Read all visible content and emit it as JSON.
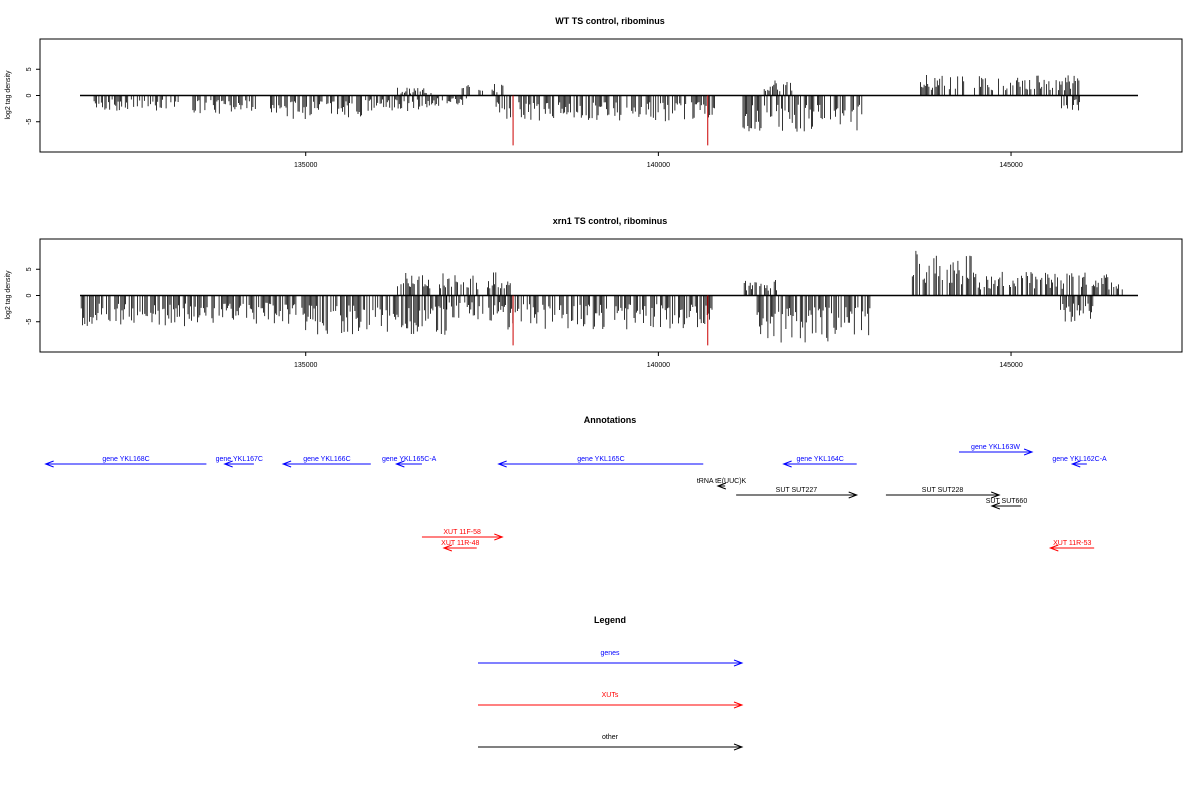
{
  "colors": {
    "genes": "#0000ff",
    "xuts": "#ff0000",
    "other": "#000000",
    "peak": "#cc0000",
    "bars": "#000000"
  },
  "chart_data": [
    {
      "type": "bar",
      "title": "WT TS control, ribominus",
      "ylabel": "log2 tag density",
      "xlim": [
        131800,
        146800
      ],
      "ylim": [
        -10,
        10
      ],
      "yticks": [
        -5,
        0,
        5
      ],
      "xticks": [
        135000,
        140000,
        145000
      ],
      "features": {
        "negative_regions": [
          {
            "from": 132000,
            "to": 133200,
            "min": -3.0
          },
          {
            "from": 133400,
            "to": 134300,
            "min": -3.5
          },
          {
            "from": 134500,
            "to": 135800,
            "min": -4.5
          },
          {
            "from": 135800,
            "to": 136800,
            "min": -3.0
          },
          {
            "from": 136800,
            "to": 137300,
            "min": -2.0
          },
          {
            "from": 137700,
            "to": 140800,
            "min": -5.0
          },
          {
            "from": 141200,
            "to": 142900,
            "min": -7.0
          },
          {
            "from": 145700,
            "to": 146000,
            "min": -3.0
          }
        ],
        "positive_regions": [
          {
            "from": 136300,
            "to": 136800,
            "max": 1.5
          },
          {
            "from": 137200,
            "to": 137800,
            "max": 2.5
          },
          {
            "from": 141500,
            "to": 141900,
            "max": 3.0
          },
          {
            "from": 143700,
            "to": 146000,
            "max": 4.0
          }
        ],
        "peaks": [
          {
            "x": 137940,
            "y": -9.5
          },
          {
            "x": 140700,
            "y": -9.5
          }
        ]
      }
    },
    {
      "type": "bar",
      "title": "xrn1 TS control, ribominus",
      "ylabel": "log2 tag density",
      "xlim": [
        131800,
        146800
      ],
      "ylim": [
        -10,
        10
      ],
      "yticks": [
        -5,
        0,
        5
      ],
      "xticks": [
        135000,
        140000,
        145000
      ],
      "features": {
        "negative_regions": [
          {
            "from": 131800,
            "to": 133500,
            "min": -6.0
          },
          {
            "from": 133500,
            "to": 135000,
            "min": -5.5
          },
          {
            "from": 135000,
            "to": 137000,
            "min": -7.5
          },
          {
            "from": 137000,
            "to": 137800,
            "min": -5.0
          },
          {
            "from": 137800,
            "to": 140800,
            "min": -6.5
          },
          {
            "from": 141400,
            "to": 143000,
            "min": -9.0
          },
          {
            "from": 145700,
            "to": 146200,
            "min": -6.0
          }
        ],
        "positive_regions": [
          {
            "from": 136300,
            "to": 137900,
            "max": 4.5
          },
          {
            "from": 141200,
            "to": 141700,
            "max": 3.0
          },
          {
            "from": 143600,
            "to": 144500,
            "max": 8.5
          },
          {
            "from": 144500,
            "to": 146600,
            "max": 4.5
          }
        ],
        "peaks": [
          {
            "x": 137940,
            "y": -9.5
          },
          {
            "x": 140700,
            "y": -9.5
          }
        ]
      }
    }
  ],
  "annotations": {
    "title": "Annotations",
    "items": [
      {
        "label": "gene YKL168C",
        "type": "gene",
        "from": 131850,
        "to": 134050,
        "dir": "left",
        "row": 0
      },
      {
        "label": "gene YKL167C",
        "type": "gene",
        "from": 134300,
        "to": 134700,
        "dir": "left",
        "row": 0
      },
      {
        "label": "gene YKL166C",
        "type": "gene",
        "from": 135100,
        "to": 136300,
        "dir": "left",
        "row": 0
      },
      {
        "label": "gene YKL165C-A",
        "type": "gene",
        "from": 136650,
        "to": 137000,
        "dir": "left",
        "row": 0
      },
      {
        "label": "gene YKL165C",
        "type": "gene",
        "from": 138050,
        "to": 140850,
        "dir": "left",
        "row": 0
      },
      {
        "label": "gene YKL164C",
        "type": "gene",
        "from": 141950,
        "to": 142950,
        "dir": "left",
        "row": 0
      },
      {
        "label": "gene YKL163W",
        "type": "gene",
        "from": 144350,
        "to": 145350,
        "dir": "right",
        "row": -1
      },
      {
        "label": "gene YKL162C-A",
        "type": "gene",
        "from": 145900,
        "to": 146100,
        "dir": "left",
        "row": 0
      },
      {
        "label": "tRNA tE(UUC)K",
        "type": "other",
        "from": 141050,
        "to": 141150,
        "dir": "left",
        "row": 1
      },
      {
        "label": "SUT SUT227",
        "type": "other",
        "from": 141300,
        "to": 142950,
        "dir": "right",
        "row": 2
      },
      {
        "label": "SUT SUT228",
        "type": "other",
        "from": 143350,
        "to": 144900,
        "dir": "right",
        "row": 2
      },
      {
        "label": "SUT SUT660",
        "type": "other",
        "from": 144800,
        "to": 145200,
        "dir": "left",
        "row": 3
      },
      {
        "label": "XUT 11F-58",
        "type": "xut",
        "from": 137000,
        "to": 138100,
        "dir": "right",
        "row": 5
      },
      {
        "label": "XUT 11R-48",
        "type": "xut",
        "from": 137300,
        "to": 137750,
        "dir": "left",
        "row": 6
      },
      {
        "label": "XUT 11R-53",
        "type": "xut",
        "from": 145600,
        "to": 146200,
        "dir": "left",
        "row": 6
      }
    ]
  },
  "legend": {
    "title": "Legend",
    "items": [
      {
        "label": "genes",
        "type": "gene"
      },
      {
        "label": "XUTs",
        "type": "xut"
      },
      {
        "label": "other",
        "type": "other"
      }
    ]
  }
}
